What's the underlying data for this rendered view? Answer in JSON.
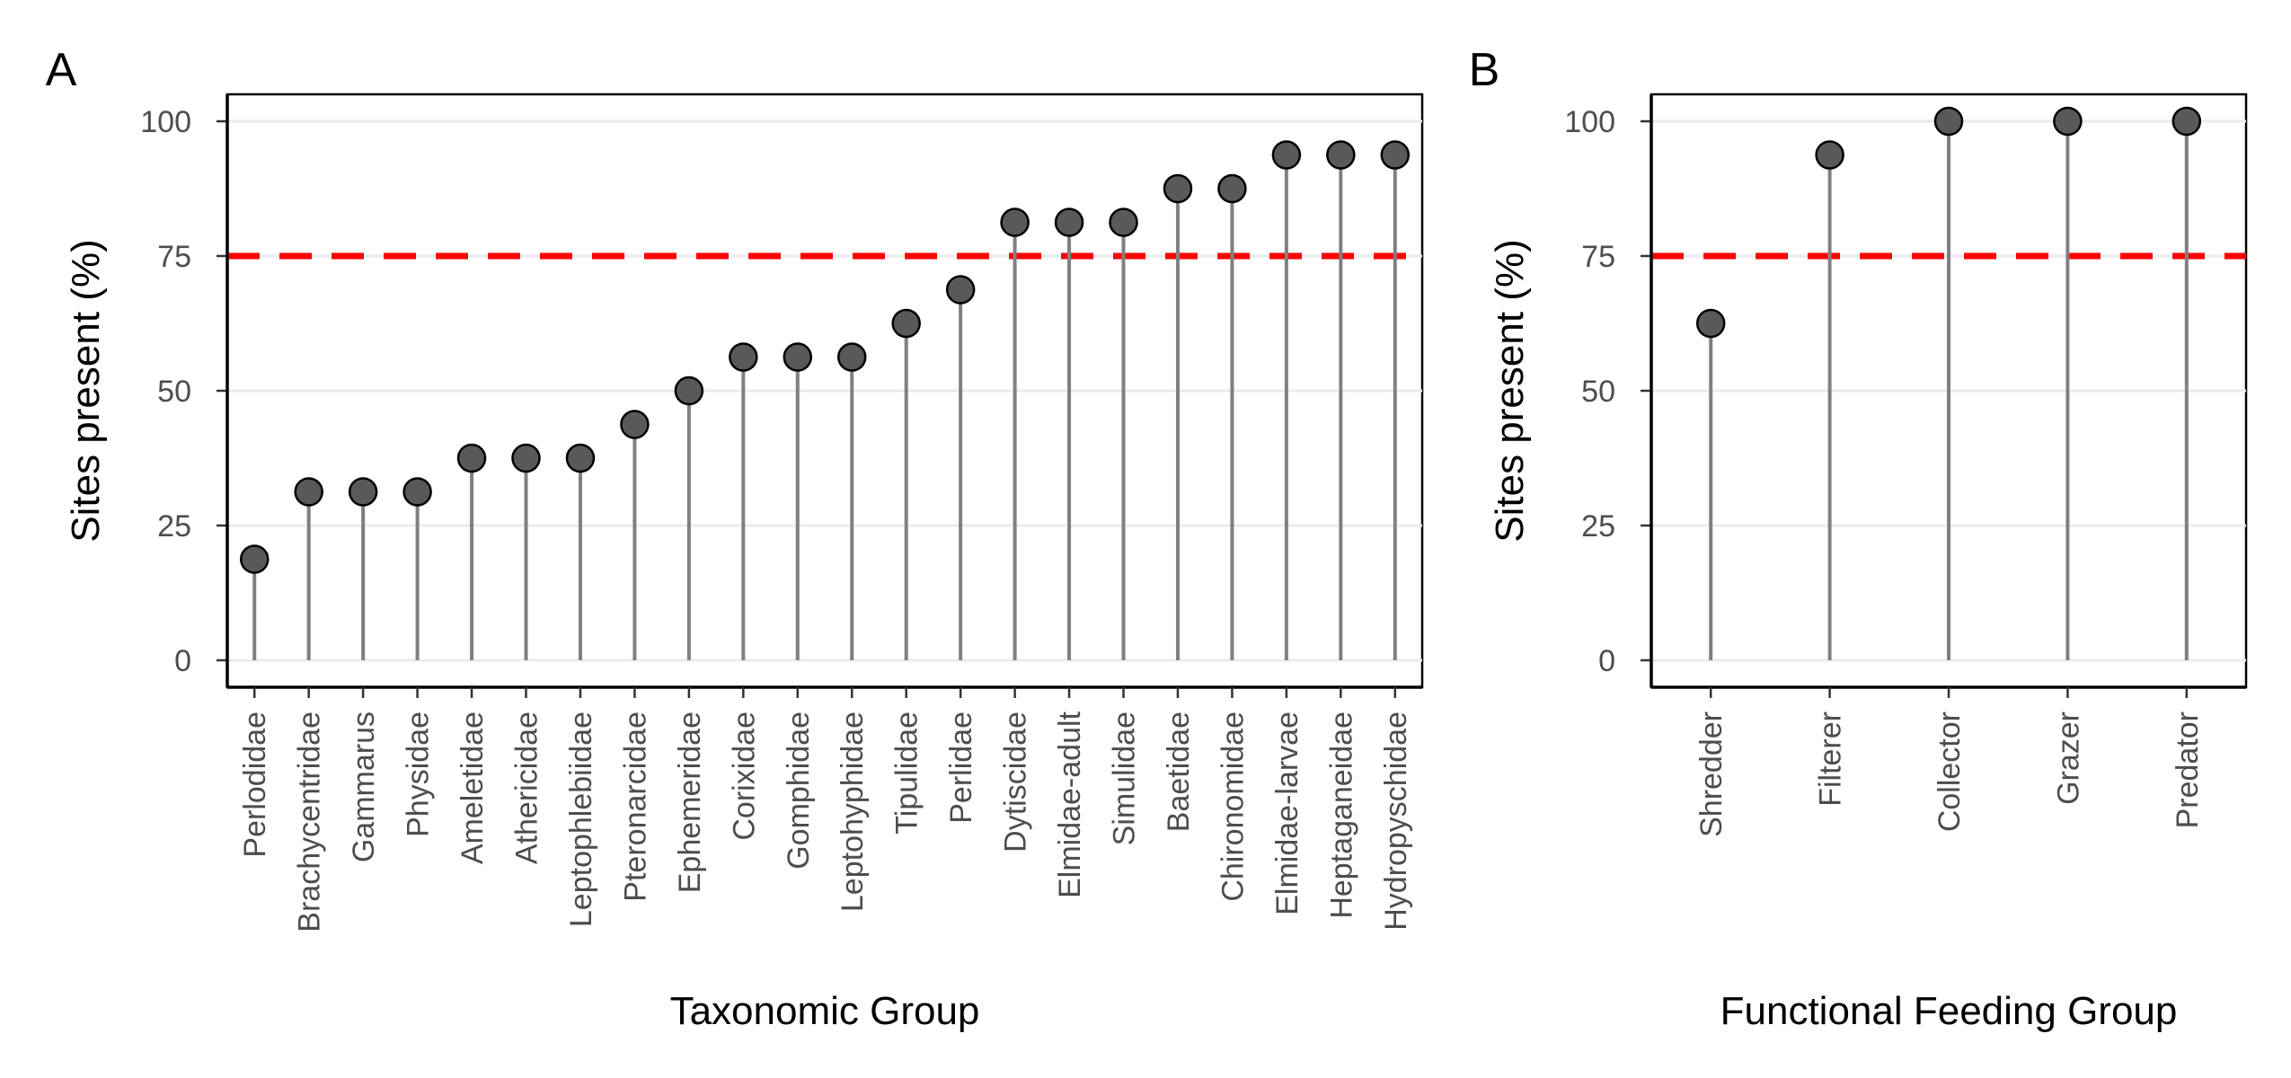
{
  "colors": {
    "threshold_line": "#ff0000",
    "point_fill": "#595959",
    "point_stroke": "#000000",
    "stem": "#808080",
    "gridline": "#ebebeb",
    "axis_line": "#000000"
  },
  "chart_data": [
    {
      "panel_tag": "A",
      "type": "scatter",
      "style": "lollipop",
      "title": "",
      "xlabel": "Taxonomic Group",
      "ylabel": "Sites present (%)",
      "categories": [
        "Perlodidae",
        "Brachycentridae",
        "Gammarus",
        "Physidae",
        "Ameletidae",
        "Athericidae",
        "Leptophlebiidae",
        "Pteronarcidae",
        "Ephemeridae",
        "Corixidae",
        "Gomphidae",
        "Leptohyphidae",
        "Tipulidae",
        "Perlidae",
        "Dytiscidae",
        "Elmidae-adult",
        "Simulidae",
        "Baetidae",
        "Chironomidae",
        "Elmidae-larvae",
        "Heptaganeidae",
        "Hydropyschidae"
      ],
      "values": [
        18.75,
        31.25,
        31.25,
        31.25,
        37.5,
        37.5,
        37.5,
        43.75,
        50,
        56.25,
        56.25,
        56.25,
        62.5,
        68.75,
        81.25,
        81.25,
        81.25,
        87.5,
        87.5,
        93.75,
        93.75,
        93.75
      ],
      "ylim": [
        -5,
        105
      ],
      "yticks": [
        "0",
        "25",
        "50",
        "75",
        "100"
      ],
      "threshold": 75,
      "grid": "horizontal"
    },
    {
      "panel_tag": "B",
      "type": "scatter",
      "style": "lollipop",
      "title": "",
      "xlabel": "Functional Feeding Group",
      "ylabel": "Sites present (%)",
      "categories": [
        "Shredder",
        "Filterer",
        "Collector",
        "Grazer",
        "Predator"
      ],
      "values": [
        62.5,
        93.75,
        100,
        100,
        100
      ],
      "ylim": [
        -5,
        105
      ],
      "yticks": [
        "0",
        "25",
        "50",
        "75",
        "100"
      ],
      "threshold": 75,
      "grid": "horizontal"
    }
  ]
}
